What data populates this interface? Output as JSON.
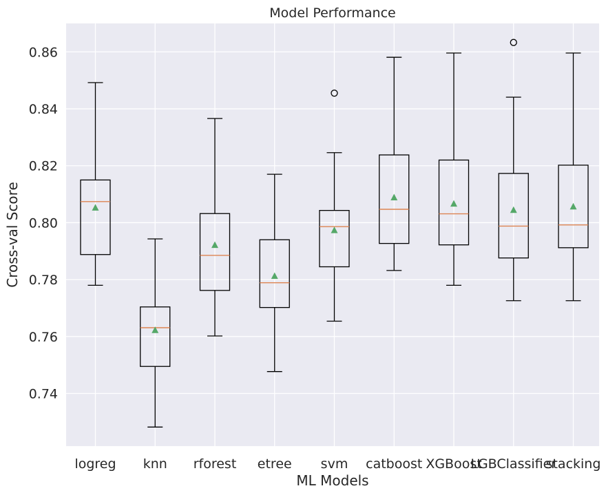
{
  "chart_data": {
    "type": "boxplot",
    "title": "Model Performance",
    "xlabel": "ML Models",
    "ylabel": "Cross-val Score",
    "ylim": [
      0.7215,
      0.87
    ],
    "yticks": [
      0.74,
      0.76,
      0.78,
      0.8,
      0.82,
      0.84,
      0.86
    ],
    "ytick_labels": [
      "0.74",
      "0.76",
      "0.78",
      "0.80",
      "0.82",
      "0.84",
      "0.86"
    ],
    "grid": true,
    "background": "#eaeaf2",
    "colors": {
      "box": "#000000",
      "median": "#dd8452",
      "mean": "#55a868",
      "grid": "#ffffff"
    },
    "categories": [
      "logreg",
      "knn",
      "rforest",
      "etree",
      "svm",
      "catboost",
      "XGBoost",
      "LGBClassifier",
      "stacking"
    ],
    "boxes": [
      {
        "name": "logreg",
        "whislo": 0.778,
        "q1": 0.7888,
        "med": 0.8074,
        "mean": 0.8052,
        "q3": 0.815,
        "whishi": 0.8492,
        "fliers": []
      },
      {
        "name": "knn",
        "whislo": 0.7282,
        "q1": 0.7495,
        "med": 0.7631,
        "mean": 0.7622,
        "q3": 0.7704,
        "whishi": 0.7943,
        "fliers": []
      },
      {
        "name": "rforest",
        "whislo": 0.7602,
        "q1": 0.7762,
        "med": 0.7885,
        "mean": 0.7921,
        "q3": 0.8032,
        "whishi": 0.8366,
        "fliers": []
      },
      {
        "name": "etree",
        "whislo": 0.7477,
        "q1": 0.7702,
        "med": 0.7789,
        "mean": 0.7812,
        "q3": 0.794,
        "whishi": 0.817,
        "fliers": []
      },
      {
        "name": "svm",
        "whislo": 0.7654,
        "q1": 0.7845,
        "med": 0.7986,
        "mean": 0.7973,
        "q3": 0.8043,
        "whishi": 0.8246,
        "fliers": [
          0.8455
        ]
      },
      {
        "name": "catboost",
        "whislo": 0.7832,
        "q1": 0.7927,
        "med": 0.8047,
        "mean": 0.8088,
        "q3": 0.8238,
        "whishi": 0.8581,
        "fliers": []
      },
      {
        "name": "XGBoost",
        "whislo": 0.778,
        "q1": 0.7922,
        "med": 0.8031,
        "mean": 0.8066,
        "q3": 0.822,
        "whishi": 0.8596,
        "fliers": []
      },
      {
        "name": "LGBClassifier",
        "whislo": 0.7726,
        "q1": 0.7876,
        "med": 0.7988,
        "mean": 0.8044,
        "q3": 0.8173,
        "whishi": 0.8441,
        "fliers": [
          0.8633
        ]
      },
      {
        "name": "stacking",
        "whislo": 0.7726,
        "q1": 0.7912,
        "med": 0.7992,
        "mean": 0.8056,
        "q3": 0.8202,
        "whishi": 0.8596,
        "fliers": []
      }
    ]
  }
}
